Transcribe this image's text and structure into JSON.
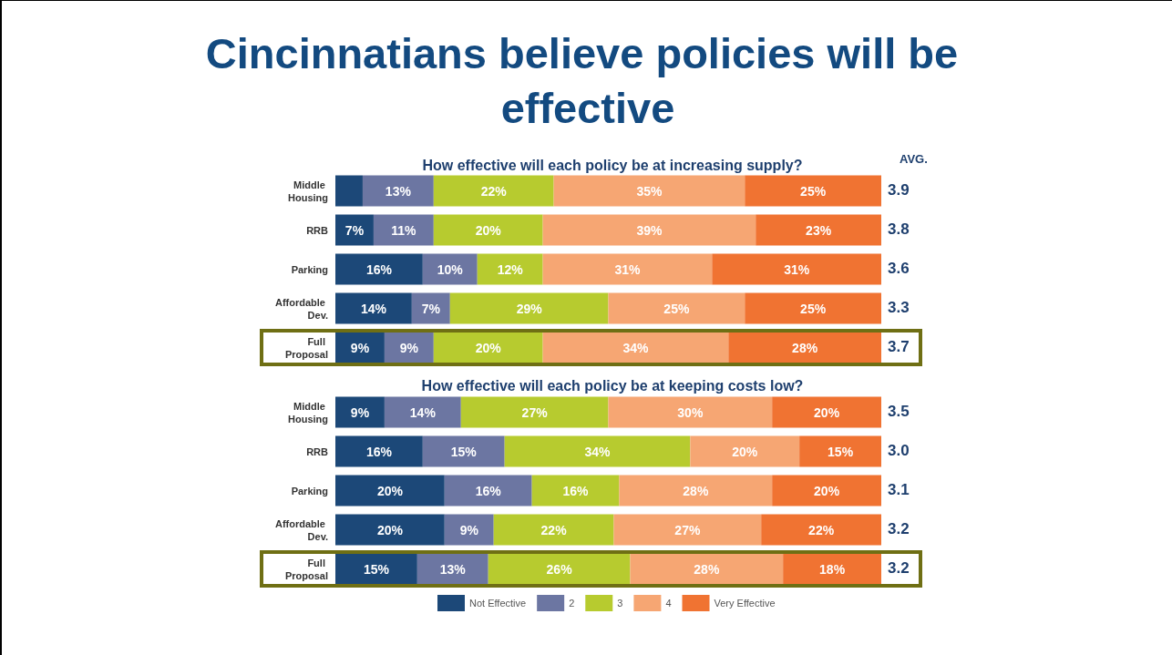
{
  "chart_data": [
    {
      "type": "bar",
      "orientation": "horizontal",
      "stacked": true,
      "title": "Cincinnatians believe policies will be effective",
      "subtitle": "How effective will each policy be at increasing supply?",
      "categories": [
        "Middle Housing",
        "RRB",
        "Parking",
        "Affordable Dev.",
        "Full Proposal"
      ],
      "xlim": [
        0,
        100
      ],
      "tick_labels": "y",
      "grid": false,
      "legend": false,
      "series": [
        {
          "color": "#1c4878",
          "values": [
            5,
            7,
            16,
            14,
            9
          ],
          "value_labels": [
            null,
            "7%",
            "16%",
            "14%",
            "9%"
          ]
        },
        {
          "color": "#6c76a2",
          "values": [
            13,
            11,
            10,
            7,
            9
          ],
          "value_labels": [
            "13%",
            "11%",
            "10%",
            "7%",
            "9%"
          ]
        },
        {
          "color": "#b7cb2f",
          "values": [
            22,
            20,
            12,
            29,
            20
          ],
          "value_labels": [
            "22%",
            "20%",
            "12%",
            "29%",
            "20%"
          ]
        },
        {
          "color": "#f6a673",
          "values": [
            35,
            39,
            31,
            25,
            34
          ],
          "value_labels": [
            "35%",
            "39%",
            "31%",
            "25%",
            "34%"
          ]
        },
        {
          "color": "#f07332",
          "values": [
            25,
            23,
            31,
            25,
            28
          ],
          "value_labels": [
            "25%",
            "23%",
            "31%",
            "25%",
            "28%"
          ]
        }
      ],
      "annotations": [
        "AVG.",
        "3.9",
        "3.8",
        "3.6",
        "3.3",
        "3.7"
      ]
    },
    {
      "type": "bar",
      "orientation": "horizontal",
      "stacked": true,
      "title": "How effective will each policy be at keeping costs low?",
      "categories": [
        "Middle Housing",
        "RRB",
        "Parking",
        "Affordable Dev.",
        "Full Proposal"
      ],
      "xlim": [
        0,
        100
      ],
      "tick_labels": "y",
      "grid": false,
      "legend": "bottom",
      "series": [
        {
          "name": "Not Effective",
          "color": "#1c4878",
          "values": [
            9,
            16,
            20,
            20,
            15
          ],
          "value_labels": [
            "9%",
            "16%",
            "20%",
            "20%",
            "15%"
          ]
        },
        {
          "name": "2",
          "color": "#6c76a2",
          "values": [
            14,
            15,
            16,
            9,
            13
          ],
          "value_labels": [
            "14%",
            "15%",
            "16%",
            "9%",
            "13%"
          ]
        },
        {
          "name": "3",
          "color": "#b7cb2f",
          "values": [
            27,
            34,
            16,
            22,
            26
          ],
          "value_labels": [
            "27%",
            "34%",
            "16%",
            "22%",
            "26%"
          ]
        },
        {
          "name": "4",
          "color": "#f6a673",
          "values": [
            30,
            20,
            28,
            27,
            28
          ],
          "value_labels": [
            "30%",
            "20%",
            "28%",
            "27%",
            "28%"
          ]
        },
        {
          "name": "Very Effective",
          "color": "#f07332",
          "values": [
            20,
            15,
            20,
            22,
            18
          ],
          "value_labels": [
            "20%",
            "15%",
            "20%",
            "22%",
            "18%"
          ]
        }
      ],
      "annotations": [
        "3.5",
        "3.0",
        "3.1",
        "3.2",
        "3.2"
      ]
    }
  ]
}
